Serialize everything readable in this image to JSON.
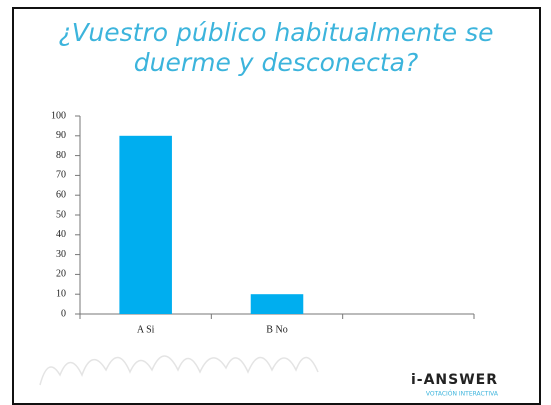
{
  "chart_data": {
    "type": "bar",
    "title": "¿Vuestro público habitualmente se duerme y desconecta?",
    "categories": [
      "A Si",
      "B No",
      null
    ],
    "values": [
      90,
      10,
      null
    ],
    "color": "#00aeef",
    "ylim": [
      0,
      100
    ],
    "yticks": [
      0,
      10,
      20,
      30,
      40,
      50,
      60,
      70,
      80,
      90,
      100
    ],
    "grid": false
  },
  "logo": {
    "name": "i-ANSWER",
    "tagline": "VOTACIÓN INTERACTIVA"
  }
}
